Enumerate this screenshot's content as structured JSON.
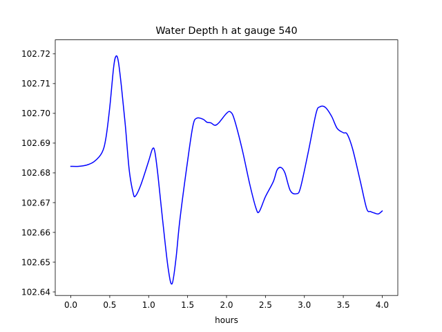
{
  "chart_data": {
    "type": "line",
    "title": "Water Depth h at gauge 540",
    "xlabel": "hours",
    "ylabel": "",
    "xlim": [
      -0.2,
      4.2
    ],
    "ylim": [
      102.6388,
      102.7247
    ],
    "xticks": [
      0.0,
      0.5,
      1.0,
      1.5,
      2.0,
      2.5,
      3.0,
      3.5,
      4.0
    ],
    "xtick_labels": [
      "0.0",
      "0.5",
      "1.0",
      "1.5",
      "2.0",
      "2.5",
      "3.0",
      "3.5",
      "4.0"
    ],
    "yticks": [
      102.64,
      102.65,
      102.66,
      102.67,
      102.68,
      102.69,
      102.7,
      102.71,
      102.72
    ],
    "ytick_labels": [
      "102.64",
      "102.65",
      "102.66",
      "102.67",
      "102.68",
      "102.69",
      "102.70",
      "102.71",
      "102.72"
    ],
    "grid": false,
    "legend": "none",
    "series": [
      {
        "color": "#0000ff",
        "x": [
          0.0,
          0.1,
          0.2,
          0.3,
          0.4,
          0.45,
          0.5,
          0.55,
          0.58,
          0.61,
          0.65,
          0.7,
          0.75,
          0.8,
          0.83,
          0.9,
          1.0,
          1.05,
          1.08,
          1.12,
          1.18,
          1.25,
          1.3,
          1.35,
          1.4,
          1.5,
          1.57,
          1.62,
          1.7,
          1.75,
          1.8,
          1.85,
          1.9,
          2.0,
          2.05,
          2.1,
          2.2,
          2.3,
          2.38,
          2.42,
          2.5,
          2.6,
          2.65,
          2.7,
          2.75,
          2.82,
          2.9,
          2.95,
          3.05,
          3.15,
          3.2,
          3.27,
          3.35,
          3.42,
          3.5,
          3.55,
          3.62,
          3.72,
          3.8,
          3.85,
          3.9,
          3.95,
          4.0
        ],
        "y": [
          102.6822,
          102.6822,
          102.6826,
          102.6838,
          102.6868,
          102.6916,
          102.702,
          102.7155,
          102.7192,
          102.7175,
          102.709,
          102.696,
          102.681,
          102.6733,
          102.6722,
          102.676,
          102.684,
          102.6881,
          102.687,
          102.679,
          102.664,
          102.648,
          102.6427,
          102.651,
          102.664,
          102.684,
          102.696,
          102.6984,
          102.698,
          102.697,
          102.6968,
          102.696,
          102.6968,
          102.7,
          102.7005,
          102.698,
          102.688,
          102.676,
          102.668,
          102.667,
          102.672,
          102.677,
          102.681,
          102.6818,
          102.68,
          102.674,
          102.673,
          102.675,
          102.687,
          102.7,
          102.7022,
          102.702,
          102.699,
          102.695,
          102.6935,
          102.693,
          102.688,
          102.677,
          102.668,
          102.667,
          102.6665,
          102.6662,
          102.6672
        ]
      }
    ]
  }
}
